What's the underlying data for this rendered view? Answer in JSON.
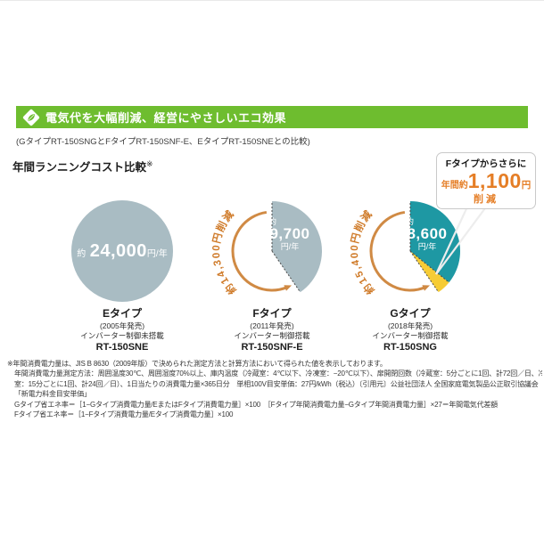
{
  "palette": {
    "header_green": "#6ebd2f",
    "gray_blue": "#a9bcc3",
    "teal": "#1e98a3",
    "yellow": "#f6cc35",
    "arrow_orange": "#d08a44",
    "accent_orange": "#e57e26",
    "annotation_orange": "#cf7a28"
  },
  "header": {
    "icon": "leaf-icon",
    "title": "電気代を大幅削減、経営にやさしいエコ効果",
    "subtitle": "(GタイプRT-150SNGとFタイプRT-150SNF-E、EタイプRT-150SNEとの比較)"
  },
  "section": {
    "title": "年間ランニングコスト比較",
    "note_mark": "※"
  },
  "callout": {
    "line1": "Fタイプからさらに",
    "prefix": "年間約",
    "value": "1,100",
    "unit": "円",
    "line3": "削減"
  },
  "chart_data": [
    {
      "type": "pie",
      "title": "Eタイプ RT-150SNE 年間ランニングコスト",
      "total_yen_per_year": 24000,
      "center_label": {
        "prefix": "約",
        "value": "24,000",
        "unit": "円/年"
      },
      "slices": [
        {
          "label": "年間ランニングコスト",
          "value": 24000,
          "color": "#a9bcc3"
        }
      ]
    },
    {
      "type": "pie",
      "title": "Fタイプ RT-150SNF-E 年間ランニングコスト",
      "total_yen_per_year": 24000,
      "center_label": {
        "prefix": "約",
        "value": "9,700",
        "unit": "円/年"
      },
      "slices": [
        {
          "label": "年間ランニングコスト",
          "value": 9700,
          "color": "#a9bcc3"
        },
        {
          "label": "削減分",
          "value": 14300,
          "color": "#ffffff"
        }
      ],
      "savings_annotation": "約14,300円削減"
    },
    {
      "type": "pie",
      "title": "Gタイプ RT-150SNG 年間ランニングコスト",
      "total_yen_per_year": 24000,
      "center_label": {
        "prefix": "約",
        "value": "8,600",
        "unit": "円/年"
      },
      "slices": [
        {
          "label": "年間ランニングコスト",
          "value": 8600,
          "color": "#1e98a3"
        },
        {
          "label": "Fタイプからの追加削減分",
          "value": 1100,
          "color": "#f6cc35"
        },
        {
          "label": "削減分",
          "value": 14300,
          "color": "#ffffff"
        }
      ],
      "savings_annotation": "約15,400円削減"
    }
  ],
  "products": [
    {
      "type_name": "Eタイプ",
      "release": "(2005年発売)",
      "inverter": "インバーター制御未搭載",
      "model": "RT-150SNE"
    },
    {
      "type_name": "Fタイプ",
      "release": "(2011年発売)",
      "inverter": "インバーター制御搭載",
      "model": "RT-150SNF-E"
    },
    {
      "type_name": "Gタイプ",
      "release": "(2018年発売)",
      "inverter": "インバーター制御搭載",
      "model": "RT-150SNG"
    }
  ],
  "footnotes": [
    "※年間消費電力量は、JIS B 8630（2009年版）で決められた測定方法と計算方法において得られた値を表示しております。",
    "年間消費電力量測定方法：周囲温度30℃、周囲湿度70%以上、庫内温度（冷蔵室：4℃以下、冷凍室：−20℃以下）、扉開閉回数（冷蔵室：5分ごとに1回、計72回／日、冷凍",
    "室：15分ごとに1回、計24回／日）、1日当たりの消費電力量×365日分　単相100V目安単価：27円/kWh（税込）〔引用元〕公益社団法人 全国家庭電気製品公正取引協議会",
    "「新電力料金目安単価」",
    "Gタイプ省エネ率＝［1−Gタイプ消費電力量/EまたはFタイプ消費電力量］×100　［Fタイプ年間消費電力量−Gタイプ年間消費電力量］×27＝年間電気代差額",
    "Fタイプ省エネ率＝［1−Fタイプ消費電力量/Eタイプ消費電力量］×100"
  ]
}
